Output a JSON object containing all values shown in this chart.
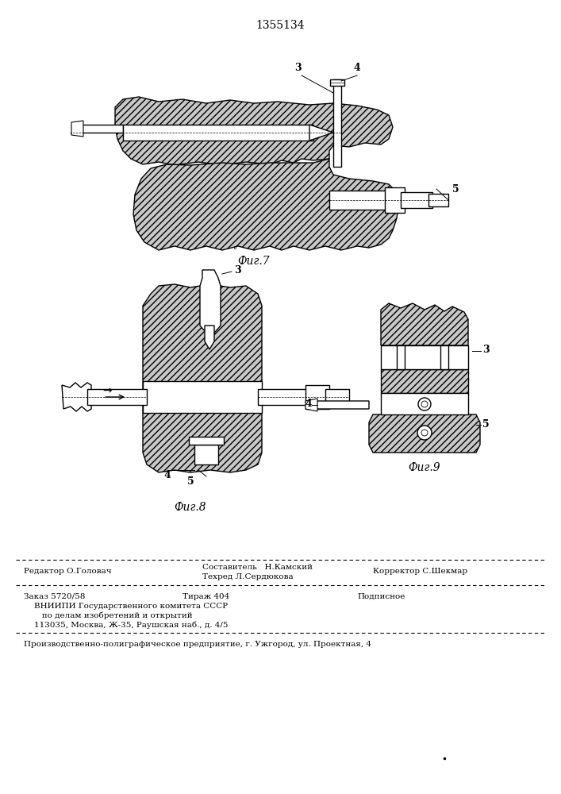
{
  "patent_number": "1355134",
  "fig7_label": "Фиг.7",
  "fig8_label": "Фиг.8",
  "fig9_label": "Фиг.9",
  "footer_line1_left": "Редактор О.Головач",
  "footer_line1_center_top": "Составитель   Н.Камский",
  "footer_line1_center_bot": "Техред Л.Сердюкова",
  "footer_line1_right": "Корректор С.Шекмар",
  "footer_line3_left": "Заказ 5720/58",
  "footer_line3_center": "Тираж 404",
  "footer_line3_right": "Подписное",
  "footer_line4": "    ВНИИПИ Государственного комитета СССР",
  "footer_line5": "       по делам изобретений и открытий",
  "footer_line6": "    113035, Москва, Ж-35, Раушская наб., д. 4/5",
  "footer_line7": "Производственно-полиграфическое предприятие, г. Ужгород, ул. Проектная, 4",
  "bg_color": "#ffffff",
  "line_color": "#000000"
}
